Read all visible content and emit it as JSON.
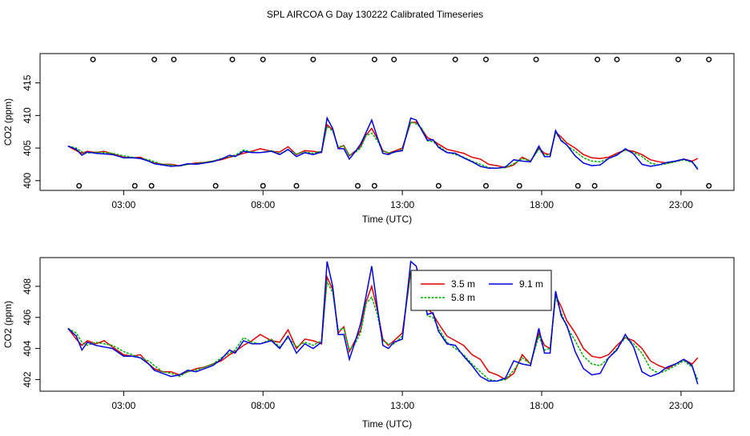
{
  "title": "SPL AIRCOA G  Day 130222  Calibrated Timeseries",
  "colors": {
    "s1": "#e00000",
    "s2": "#00b000",
    "s3": "#0000e0",
    "axis": "#000000"
  },
  "chart_data": [
    {
      "type": "line",
      "xlabel": "Time (UTC)",
      "ylabel": "CO2 (ppm)",
      "xlim": [
        0,
        24.9
      ],
      "ylim": [
        398.5,
        419.5
      ],
      "xticks": [
        3,
        8,
        13,
        18,
        23
      ],
      "xtick_labels": [
        "03:00",
        "08:00",
        "13:00",
        "18:00",
        "23:00"
      ],
      "yticks": [
        400,
        405,
        410,
        415
      ],
      "ytick_labels": [
        "400",
        "405",
        "410",
        "415"
      ],
      "grid": false,
      "markers_top": [
        1.9,
        4.1,
        4.8,
        6.9,
        8.0,
        9.8,
        12.0,
        12.7,
        14.9,
        16.0,
        17.8,
        20.0,
        20.7,
        22.9,
        24.0
      ],
      "markers_top_y": 418.6,
      "markers_bottom": [
        1.4,
        3.4,
        4.0,
        6.3,
        8.0,
        9.2,
        11.4,
        12.0,
        14.3,
        16.0,
        17.2,
        19.3,
        19.9,
        22.2,
        24.0
      ],
      "markers_bottom_y": 399.2,
      "x": [
        1.0,
        1.3,
        1.5,
        1.7,
        2.0,
        2.3,
        2.6,
        3.0,
        3.3,
        3.6,
        3.9,
        4.1,
        4.4,
        4.7,
        5.0,
        5.3,
        5.6,
        5.9,
        6.2,
        6.5,
        6.8,
        7.0,
        7.3,
        7.6,
        7.9,
        8.3,
        8.6,
        8.9,
        9.2,
        9.5,
        9.8,
        10.1,
        10.3,
        10.5,
        10.7,
        10.9,
        11.1,
        11.3,
        11.5,
        11.7,
        11.9,
        12.1,
        12.3,
        12.5,
        12.7,
        13.0,
        13.3,
        13.5,
        13.7,
        13.9,
        14.1,
        14.3,
        14.6,
        14.9,
        15.2,
        15.5,
        15.8,
        16.1,
        16.4,
        16.7,
        17.0,
        17.3,
        17.6,
        17.9,
        18.1,
        18.3,
        18.5,
        18.7,
        18.9,
        19.2,
        19.5,
        19.8,
        20.1,
        20.4,
        20.7,
        21.0,
        21.3,
        21.6,
        21.9,
        22.2,
        22.5,
        22.8,
        23.1,
        23.4,
        23.6
      ],
      "series": [
        {
          "color_key": "s1",
          "values": [
            405.3,
            404.6,
            404.2,
            404.5,
            404.3,
            404.5,
            404.1,
            403.6,
            403.5,
            403.6,
            403.0,
            402.7,
            402.5,
            402.5,
            402.3,
            402.5,
            402.7,
            402.8,
            403.0,
            403.2,
            403.6,
            403.8,
            404.2,
            404.5,
            404.9,
            404.5,
            404.4,
            405.2,
            404.0,
            404.6,
            404.5,
            404.3,
            408.6,
            407.8,
            405.0,
            405.4,
            403.8,
            404.5,
            405.2,
            407.0,
            408.0,
            406.5,
            404.6,
            404.2,
            404.5,
            405.0,
            408.9,
            409.0,
            407.9,
            406.6,
            406.2,
            405.6,
            404.8,
            404.5,
            404.2,
            403.6,
            403.3,
            402.5,
            402.3,
            402.0,
            402.4,
            403.6,
            403.0,
            405.0,
            404.2,
            404.0,
            407.4,
            406.7,
            405.8,
            405.0,
            404.0,
            403.5,
            403.4,
            403.6,
            404.2,
            404.7,
            404.5,
            404.0,
            403.2,
            402.9,
            402.7,
            403.0,
            403.3,
            403.0,
            403.4
          ]
        },
        {
          "color_key": "s2",
          "values": [
            405.3,
            405.0,
            404.4,
            404.2,
            404.4,
            404.3,
            404.2,
            403.8,
            403.6,
            403.4,
            403.2,
            402.9,
            402.5,
            402.4,
            402.2,
            402.5,
            402.6,
            402.8,
            403.0,
            403.4,
            403.7,
            403.9,
            404.7,
            404.4,
            404.3,
            404.6,
            404.1,
            404.7,
            404.1,
            404.4,
            404.2,
            404.5,
            408.3,
            407.6,
            405.2,
            405.3,
            403.9,
            404.3,
            405.0,
            406.9,
            407.3,
            406.2,
            404.5,
            404.3,
            404.3,
            404.8,
            409.0,
            408.7,
            408.0,
            406.1,
            406.0,
            405.3,
            404.4,
            404.0,
            403.6,
            403.0,
            402.5,
            402.0,
            401.9,
            402.0,
            402.6,
            403.4,
            403.0,
            404.8,
            403.9,
            404.0,
            407.3,
            406.3,
            405.4,
            404.5,
            403.5,
            403.0,
            402.9,
            403.4,
            404.0,
            404.7,
            404.3,
            403.7,
            402.7,
            402.4,
            402.6,
            402.9,
            403.2,
            402.8,
            402.0
          ]
        },
        {
          "color_key": "s3",
          "values": [
            405.3,
            404.8,
            403.9,
            404.4,
            404.2,
            404.1,
            404.0,
            403.5,
            403.5,
            403.4,
            403.0,
            402.6,
            402.4,
            402.2,
            402.3,
            402.6,
            402.5,
            402.7,
            402.9,
            403.3,
            403.9,
            403.7,
            404.5,
            404.3,
            404.3,
            404.5,
            404.0,
            404.8,
            403.7,
            404.3,
            404.0,
            404.4,
            409.6,
            408.0,
            404.9,
            404.9,
            403.3,
            404.4,
            405.6,
            407.4,
            409.3,
            406.7,
            404.2,
            404.0,
            404.4,
            404.6,
            409.6,
            409.3,
            407.7,
            406.2,
            406.3,
            405.1,
            404.3,
            404.2,
            403.5,
            402.9,
            402.2,
            401.9,
            401.9,
            402.1,
            403.2,
            403.0,
            402.9,
            405.3,
            403.7,
            403.7,
            407.7,
            406.1,
            405.5,
            403.8,
            402.7,
            402.3,
            402.4,
            403.4,
            403.9,
            404.9,
            404.1,
            402.5,
            402.2,
            402.4,
            402.8,
            403.0,
            403.3,
            402.9,
            401.7
          ]
        }
      ]
    },
    {
      "type": "line",
      "xlabel": "Time (UTC)",
      "ylabel": "CO2 (ppm)",
      "xlim": [
        0,
        24.9
      ],
      "ylim": [
        401.25,
        409.85
      ],
      "xticks": [
        3,
        8,
        13,
        18,
        23
      ],
      "xtick_labels": [
        "03:00",
        "08:00",
        "13:00",
        "18:00",
        "23:00"
      ],
      "yticks": [
        402,
        404,
        406,
        408
      ],
      "ytick_labels": [
        "402",
        "404",
        "406",
        "408"
      ],
      "grid": false,
      "legend": {
        "position": "top-center",
        "entries": [
          "3.5 m",
          "5.8 m",
          "9.1 m"
        ]
      },
      "x": [
        1.0,
        1.3,
        1.5,
        1.7,
        2.0,
        2.3,
        2.6,
        3.0,
        3.3,
        3.6,
        3.9,
        4.1,
        4.4,
        4.7,
        5.0,
        5.3,
        5.6,
        5.9,
        6.2,
        6.5,
        6.8,
        7.0,
        7.3,
        7.6,
        7.9,
        8.3,
        8.6,
        8.9,
        9.2,
        9.5,
        9.8,
        10.1,
        10.3,
        10.5,
        10.7,
        10.9,
        11.1,
        11.3,
        11.5,
        11.7,
        11.9,
        12.1,
        12.3,
        12.5,
        12.7,
        13.0,
        13.3,
        13.5,
        13.7,
        13.9,
        14.1,
        14.3,
        14.6,
        14.9,
        15.2,
        15.5,
        15.8,
        16.1,
        16.4,
        16.7,
        17.0,
        17.3,
        17.6,
        17.9,
        18.1,
        18.3,
        18.5,
        18.7,
        18.9,
        19.2,
        19.5,
        19.8,
        20.1,
        20.4,
        20.7,
        21.0,
        21.3,
        21.6,
        21.9,
        22.2,
        22.5,
        22.8,
        23.1,
        23.4,
        23.6
      ],
      "series": [
        {
          "name": "3.5 m",
          "color_key": "s1",
          "values": [
            405.3,
            404.6,
            404.2,
            404.5,
            404.3,
            404.5,
            404.1,
            403.6,
            403.5,
            403.6,
            403.0,
            402.7,
            402.5,
            402.5,
            402.3,
            402.5,
            402.7,
            402.8,
            403.0,
            403.2,
            403.6,
            403.8,
            404.2,
            404.5,
            404.9,
            404.5,
            404.4,
            405.2,
            404.0,
            404.6,
            404.5,
            404.3,
            408.6,
            407.8,
            405.0,
            405.4,
            403.8,
            404.5,
            405.2,
            407.0,
            408.0,
            406.5,
            404.6,
            404.2,
            404.5,
            405.0,
            408.9,
            409.0,
            407.9,
            406.6,
            406.2,
            405.6,
            404.8,
            404.5,
            404.2,
            403.6,
            403.3,
            402.5,
            402.3,
            402.0,
            402.4,
            403.6,
            403.0,
            405.0,
            404.2,
            404.0,
            407.4,
            406.7,
            405.8,
            405.0,
            404.0,
            403.5,
            403.4,
            403.6,
            404.2,
            404.7,
            404.5,
            404.0,
            403.2,
            402.9,
            402.7,
            403.0,
            403.3,
            403.0,
            403.4
          ]
        },
        {
          "name": "5.8 m",
          "color_key": "s2",
          "values": [
            405.3,
            405.0,
            404.4,
            404.2,
            404.4,
            404.3,
            404.2,
            403.8,
            403.6,
            403.4,
            403.2,
            402.9,
            402.5,
            402.4,
            402.2,
            402.5,
            402.6,
            402.8,
            403.0,
            403.4,
            403.7,
            403.9,
            404.7,
            404.4,
            404.3,
            404.6,
            404.1,
            404.7,
            404.1,
            404.4,
            404.2,
            404.5,
            408.3,
            407.6,
            405.2,
            405.3,
            403.9,
            404.3,
            405.0,
            406.9,
            407.3,
            406.2,
            404.5,
            404.3,
            404.3,
            404.8,
            409.0,
            408.7,
            408.0,
            406.1,
            406.0,
            405.3,
            404.4,
            404.0,
            403.6,
            403.0,
            402.5,
            402.0,
            401.9,
            402.0,
            402.6,
            403.4,
            403.0,
            404.8,
            403.9,
            404.0,
            407.3,
            406.3,
            405.4,
            404.5,
            403.5,
            403.0,
            402.9,
            403.4,
            404.0,
            404.7,
            404.3,
            403.7,
            402.7,
            402.4,
            402.6,
            402.9,
            403.2,
            402.8,
            402.0
          ]
        },
        {
          "name": "9.1 m",
          "color_key": "s3",
          "values": [
            405.3,
            404.8,
            403.9,
            404.4,
            404.2,
            404.1,
            404.0,
            403.5,
            403.5,
            403.4,
            403.0,
            402.6,
            402.4,
            402.2,
            402.3,
            402.6,
            402.5,
            402.7,
            402.9,
            403.3,
            403.9,
            403.7,
            404.5,
            404.3,
            404.3,
            404.5,
            404.0,
            404.8,
            403.7,
            404.3,
            404.0,
            404.4,
            409.6,
            408.0,
            404.9,
            404.9,
            403.3,
            404.4,
            405.6,
            407.4,
            409.3,
            406.7,
            404.2,
            404.0,
            404.4,
            404.6,
            409.6,
            409.3,
            407.7,
            406.2,
            406.3,
            405.1,
            404.3,
            404.2,
            403.5,
            402.9,
            402.2,
            401.9,
            401.9,
            402.1,
            403.2,
            403.0,
            402.9,
            405.3,
            403.7,
            403.7,
            407.7,
            406.1,
            405.5,
            403.8,
            402.7,
            402.3,
            402.4,
            403.4,
            403.9,
            404.9,
            404.1,
            402.5,
            402.2,
            402.4,
            402.8,
            403.0,
            403.3,
            402.9,
            401.7
          ]
        }
      ]
    }
  ]
}
